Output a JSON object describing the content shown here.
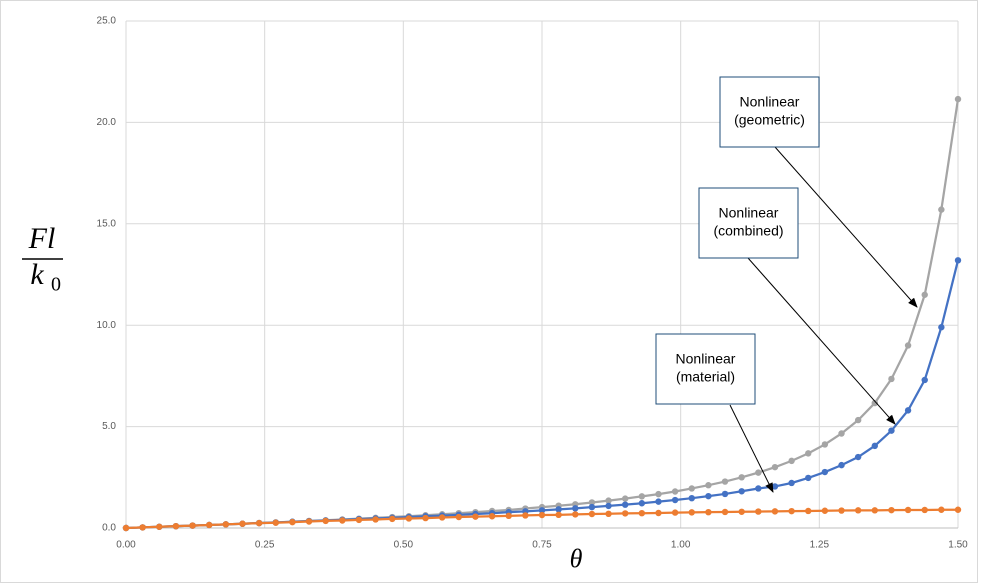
{
  "chart_data": {
    "type": "line",
    "x_label": "θ",
    "y_label": {
      "numerator": "Fl",
      "denominator": "k",
      "subscript": "0"
    },
    "x": [
      0,
      0.03,
      0.06,
      0.09,
      0.12,
      0.15,
      0.18,
      0.21,
      0.24,
      0.27,
      0.3,
      0.33,
      0.36,
      0.39,
      0.42,
      0.45,
      0.48,
      0.51,
      0.54,
      0.57,
      0.6,
      0.63,
      0.66,
      0.69,
      0.72,
      0.75,
      0.78,
      0.81,
      0.84,
      0.87,
      0.9,
      0.93,
      0.96,
      0.99,
      1.02,
      1.05,
      1.08,
      1.11,
      1.14,
      1.17,
      1.2,
      1.23,
      1.26,
      1.29,
      1.32,
      1.35,
      1.38,
      1.41,
      1.44,
      1.47,
      1.5
    ],
    "series": [
      {
        "color": "#a5a5a5",
        "values": [
          0,
          0.03,
          0.06,
          0.09,
          0.12,
          0.15,
          0.18,
          0.21,
          0.25,
          0.28,
          0.31,
          0.35,
          0.38,
          0.42,
          0.46,
          0.5,
          0.54,
          0.58,
          0.63,
          0.68,
          0.73,
          0.78,
          0.84,
          0.89,
          0.96,
          1.03,
          1.1,
          1.17,
          1.26,
          1.35,
          1.45,
          1.56,
          1.67,
          1.8,
          1.95,
          2.11,
          2.29,
          2.5,
          2.73,
          3.0,
          3.31,
          3.68,
          4.12,
          4.66,
          5.32,
          6.16,
          7.35,
          9.0,
          11.5,
          15.7,
          21.15
        ]
      },
      {
        "color": "#4472c4",
        "values": [
          0,
          0.03,
          0.06,
          0.09,
          0.12,
          0.15,
          0.18,
          0.21,
          0.24,
          0.27,
          0.31,
          0.34,
          0.37,
          0.4,
          0.44,
          0.47,
          0.5,
          0.54,
          0.58,
          0.61,
          0.65,
          0.69,
          0.73,
          0.78,
          0.82,
          0.87,
          0.92,
          0.97,
          1.03,
          1.09,
          1.15,
          1.22,
          1.3,
          1.38,
          1.47,
          1.57,
          1.68,
          1.81,
          1.95,
          2.05,
          2.22,
          2.47,
          2.76,
          3.1,
          3.5,
          4.05,
          4.8,
          5.8,
          7.3,
          9.9,
          13.2
        ]
      },
      {
        "color": "#ed7d31",
        "values": [
          0,
          0.03,
          0.06,
          0.09,
          0.12,
          0.15,
          0.18,
          0.21,
          0.24,
          0.26,
          0.29,
          0.32,
          0.35,
          0.37,
          0.4,
          0.42,
          0.45,
          0.47,
          0.49,
          0.52,
          0.54,
          0.56,
          0.58,
          0.6,
          0.62,
          0.64,
          0.65,
          0.67,
          0.69,
          0.7,
          0.72,
          0.73,
          0.74,
          0.76,
          0.77,
          0.78,
          0.79,
          0.8,
          0.81,
          0.82,
          0.83,
          0.84,
          0.85,
          0.86,
          0.87,
          0.87,
          0.88,
          0.89,
          0.89,
          0.9,
          0.9
        ]
      }
    ],
    "xlim": [
      0,
      1.5
    ],
    "xticks": [
      {
        "value": 0,
        "label": "0.00"
      },
      {
        "value": 0.25,
        "label": "0.25"
      },
      {
        "value": 0.5,
        "label": "0.50"
      },
      {
        "value": 0.75,
        "label": "0.75"
      },
      {
        "value": 1,
        "label": "1.00"
      },
      {
        "value": 1.25,
        "label": "1.25"
      },
      {
        "value": 1.5,
        "label": "1.50"
      }
    ],
    "ylim": [
      0,
      25
    ],
    "yticks": [
      {
        "value": 0,
        "label": "0.0"
      },
      {
        "value": 5,
        "label": "5.0"
      },
      {
        "value": 10,
        "label": "10.0"
      },
      {
        "value": 15,
        "label": "15.0"
      },
      {
        "value": 20,
        "label": "20.0"
      },
      {
        "value": 25,
        "label": "25.0"
      }
    ],
    "grid": true,
    "annotations": [
      {
        "lines": [
          "Nonlinear",
          "(geometric)"
        ]
      },
      {
        "lines": [
          "Nonlinear",
          "(combined)"
        ]
      },
      {
        "lines": [
          "Nonlinear",
          "(material)"
        ]
      }
    ]
  }
}
